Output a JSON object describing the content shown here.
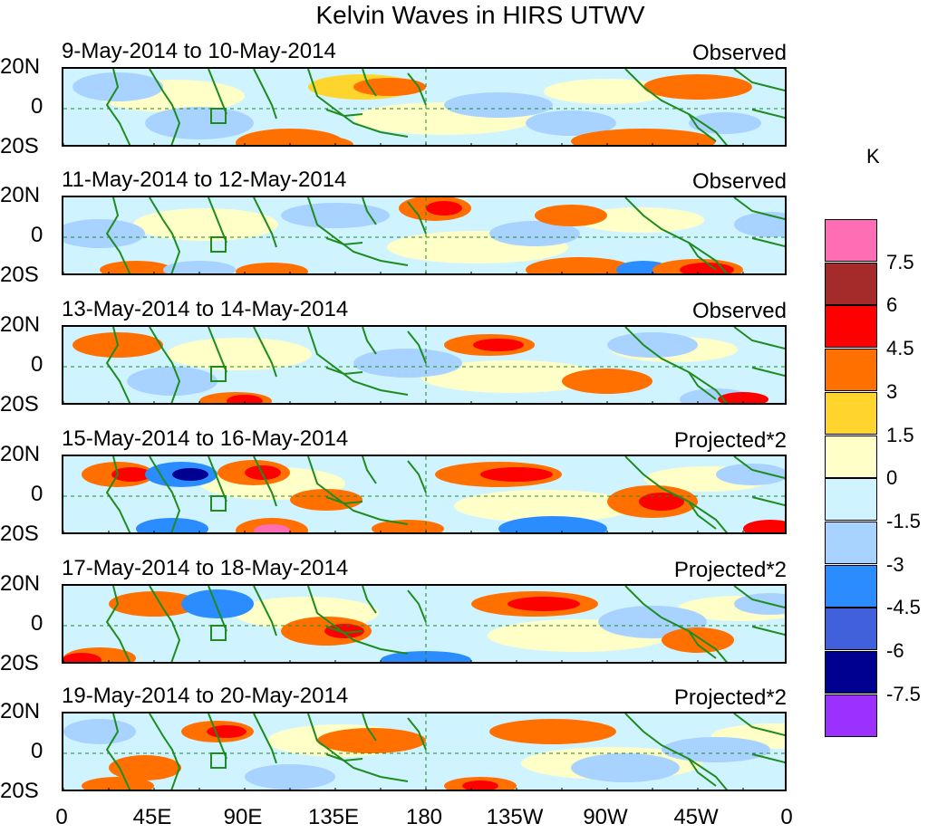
{
  "title": "Kelvin Waves in HIRS UTWV",
  "unit": "K",
  "x_axis_labels": [
    "0",
    "45E",
    "90E",
    "135E",
    "180",
    "135W",
    "90W",
    "45W",
    "0"
  ],
  "y_axis_labels": [
    "20N",
    "0",
    "20S"
  ],
  "panels": [
    {
      "date_range": "9-May-2014 to 10-May-2014",
      "kind": "Observed"
    },
    {
      "date_range": "11-May-2014 to 12-May-2014",
      "kind": "Observed"
    },
    {
      "date_range": "13-May-2014 to 14-May-2014",
      "kind": "Observed"
    },
    {
      "date_range": "15-May-2014 to 16-May-2014",
      "kind": "Projected*2"
    },
    {
      "date_range": "17-May-2014 to 18-May-2014",
      "kind": "Projected*2"
    },
    {
      "date_range": "19-May-2014 to 20-May-2014",
      "kind": "Projected*2"
    }
  ],
  "colorbar": {
    "labels": [
      "7.5",
      "6",
      "4.5",
      "3",
      "1.5",
      "0",
      "-1.5",
      "-3",
      "-4.5",
      "-6",
      "-7.5"
    ],
    "colors": [
      "#ff6eb4",
      "#a52a2a",
      "#ff0000",
      "#ff7000",
      "#ffd52d",
      "#ffffc8",
      "#d0f4ff",
      "#a8d2ff",
      "#2a8cff",
      "#4060dc",
      "#000090",
      "#9b30ff"
    ]
  }
}
